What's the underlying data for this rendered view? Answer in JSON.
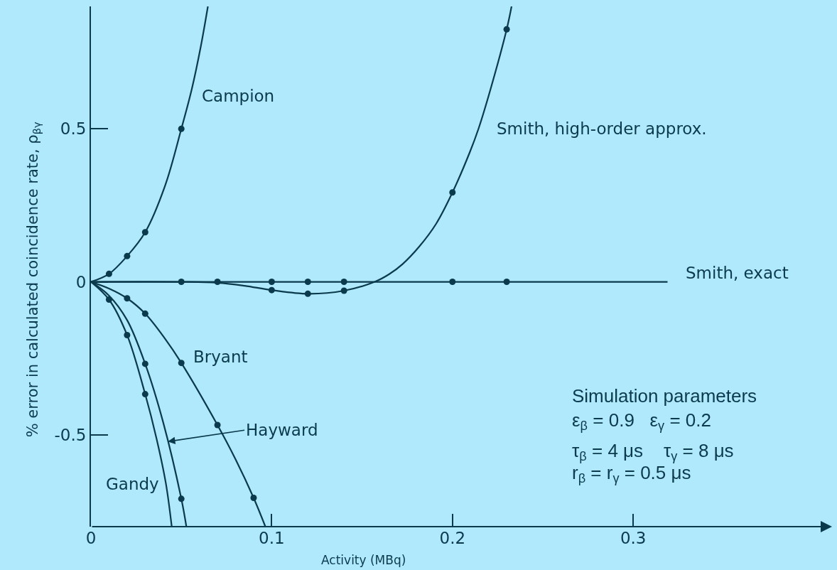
{
  "chart_data": {
    "type": "line",
    "xlabel": "Activity (MBq)",
    "ylabel": "% error in calculated coincidence rate, ρ$_{βγ}$",
    "xlim": [
      0,
      0.41
    ],
    "xticks": [
      0,
      0.1,
      0.2,
      0.3
    ],
    "ylim": [
      -0.8,
      0.9
    ],
    "yticks": [
      -0.5,
      0,
      0.5
    ],
    "grid": false,
    "legend": false,
    "annotations": [
      {
        "text": "Hayward",
        "x": 0.0425,
        "y": -0.522
      },
      "Simulation parameters",
      "ε$_{β}$ = 0.9   ε$_{γ}$ = 0.2",
      "τ$_{β}$ = 4 μs    τ$_{γ}$ = 8 μs",
      "r$_{β}$ = r$_{γ}$ = 0.5 μs"
    ],
    "series": [
      {
        "name": "Campion",
        "color": "#0a3a4c",
        "x": [
          0,
          0.01,
          0.02,
          0.03,
          0.041,
          0.05,
          0.0558,
          0.0608,
          0.0647
        ],
        "values": [
          0,
          0.026,
          0.084,
          0.162,
          0.314,
          0.5,
          0.63,
          0.77,
          0.9
        ]
      },
      {
        "type": "scatter",
        "color": "#0a3a4c",
        "x": [
          0.01,
          0.02,
          0.03,
          0.05
        ],
        "values": [
          0.026,
          0.084,
          0.162,
          0.5
        ]
      },
      {
        "name": "Smith, high-order approx.",
        "color": "#0a3a4c",
        "x": [
          0,
          0.05,
          0.07,
          0.085,
          0.1,
          0.12,
          0.14,
          0.157,
          0.165,
          0.1724,
          0.1816,
          0.191,
          0.2,
          0.2097,
          0.2144,
          0.2209,
          0.23,
          0.2327
        ],
        "values": [
          0,
          0,
          -0.003,
          -0.013,
          -0.027,
          -0.039,
          -0.029,
          0,
          0.025,
          0.058,
          0.115,
          0.19,
          0.292,
          0.425,
          0.5,
          0.626,
          0.825,
          0.9
        ]
      },
      {
        "type": "scatter",
        "color": "#0a3a4c",
        "x": [
          0.1,
          0.12,
          0.14,
          0.2,
          0.23
        ],
        "values": [
          -0.027,
          -0.039,
          -0.029,
          0.292,
          0.825
        ]
      },
      {
        "name": "Smith, exact",
        "color": "#0a3a4c",
        "x": [
          0,
          0.319
        ],
        "values": [
          0,
          0
        ]
      },
      {
        "type": "scatter",
        "color": "#0a3a4c",
        "x": [
          0.05,
          0.07,
          0.1,
          0.12,
          0.14,
          0.2,
          0.23
        ],
        "values": [
          0,
          0,
          0,
          0,
          0,
          0,
          0
        ]
      },
      {
        "name": "Bryant",
        "color": "#0a3a4c",
        "x": [
          0,
          0.01,
          0.02,
          0.03,
          0.041,
          0.05,
          0.07,
          0.08,
          0.09,
          0.0965
        ],
        "values": [
          0,
          -0.022,
          -0.054,
          -0.104,
          -0.186,
          -0.265,
          -0.468,
          -0.58,
          -0.706,
          -0.8
        ]
      },
      {
        "type": "scatter",
        "color": "#0a3a4c",
        "x": [
          0.02,
          0.03,
          0.05,
          0.07,
          0.09
        ],
        "values": [
          -0.054,
          -0.104,
          -0.265,
          -0.468,
          -0.706
        ]
      },
      {
        "color": "#0a3a4c",
        "x": [
          0,
          0.01,
          0.02,
          0.03,
          0.04,
          0.05,
          0.0528
        ],
        "values": [
          0,
          -0.045,
          -0.125,
          -0.268,
          -0.46,
          -0.709,
          -0.8
        ]
      },
      {
        "type": "scatter",
        "color": "#0a3a4c",
        "x": [
          0.03,
          0.05
        ],
        "values": [
          -0.268,
          -0.709
        ]
      },
      {
        "name": "Gandy",
        "color": "#0a3a4c",
        "x": [
          0,
          0.01,
          0.02,
          0.03,
          0.0362,
          0.0414,
          0.0447
        ],
        "values": [
          0,
          -0.058,
          -0.174,
          -0.367,
          -0.51,
          -0.657,
          -0.8
        ]
      },
      {
        "type": "scatter",
        "color": "#0a3a4c",
        "x": [
          0.01,
          0.02,
          0.03
        ],
        "values": [
          -0.058,
          -0.174,
          -0.367
        ]
      }
    ]
  }
}
